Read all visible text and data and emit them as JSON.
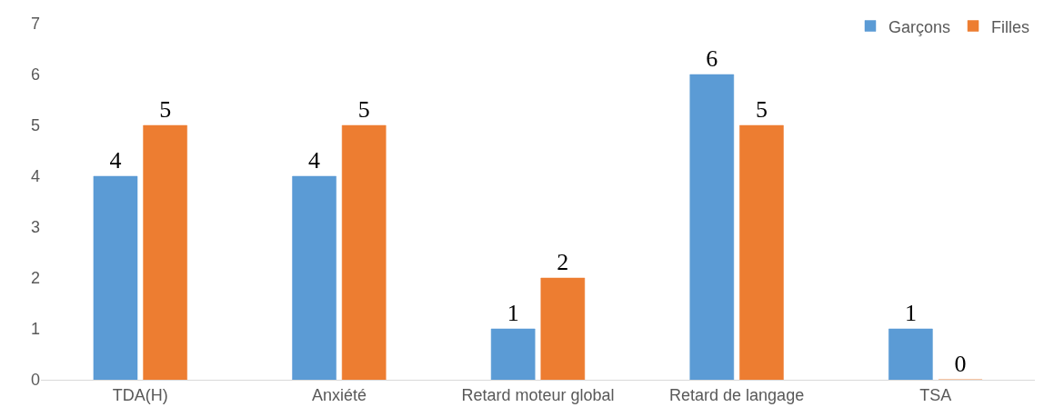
{
  "chart_data": {
    "type": "bar",
    "categories": [
      "TDA(H)",
      "Anxiété",
      "Retard moteur global",
      "Retard de langage",
      "TSA"
    ],
    "series": [
      {
        "name": "Garçons",
        "color": "#5b9bd5",
        "values": [
          4,
          4,
          1,
          6,
          1
        ]
      },
      {
        "name": "Filles",
        "color": "#ed7d31",
        "values": [
          5,
          5,
          2,
          5,
          0
        ]
      }
    ],
    "ylim": [
      0,
      7
    ],
    "yticks": [
      0,
      1,
      2,
      3,
      4,
      5,
      6,
      7
    ],
    "data_labels": true,
    "grid": false,
    "legend": "top right"
  }
}
